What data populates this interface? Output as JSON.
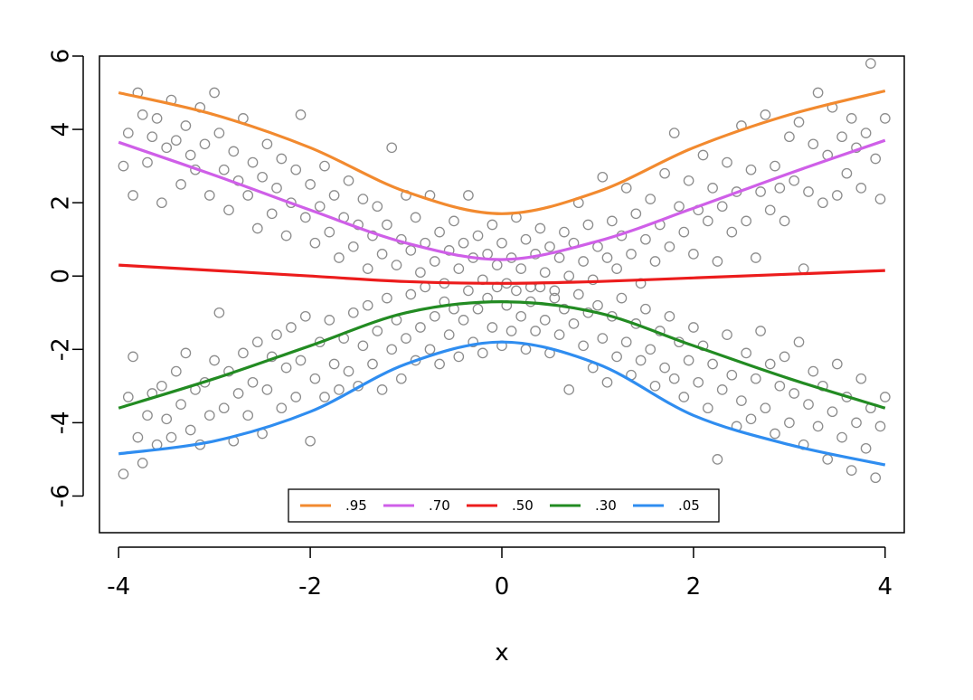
{
  "chart_data": {
    "type": "scatter",
    "title": "",
    "xlabel": "x",
    "ylabel": "",
    "xlim": [
      -4.2,
      4.2
    ],
    "ylim": [
      -7,
      6
    ],
    "x_ticks": [
      "-4",
      "-2",
      "0",
      "2",
      "4"
    ],
    "y_ticks": [
      "-6",
      "-4",
      "-2",
      "0",
      "2",
      "4",
      "6"
    ],
    "grid": false,
    "legend_position": "bottom-center",
    "point_color": "#8c8c8c",
    "quantile_curves": [
      {
        "name": ".95",
        "color": "#f28a2f",
        "x": [
          -4,
          -3,
          -2,
          -1,
          0,
          1,
          2,
          3,
          4
        ],
        "y": [
          5.0,
          4.4,
          3.5,
          2.3,
          1.7,
          2.3,
          3.5,
          4.4,
          5.05
        ]
      },
      {
        "name": ".70",
        "color": "#cf5fe8",
        "x": [
          -4,
          -3,
          -2,
          -1,
          0,
          1,
          2,
          3,
          4
        ],
        "y": [
          3.65,
          2.75,
          1.8,
          0.9,
          0.45,
          0.95,
          1.85,
          2.8,
          3.7
        ]
      },
      {
        "name": ".50",
        "color": "#ec1c1c",
        "x": [
          -4,
          -3,
          -2,
          -1,
          0,
          1,
          2,
          3,
          4
        ],
        "y": [
          0.3,
          0.15,
          0.0,
          -0.15,
          -0.2,
          -0.15,
          -0.05,
          0.05,
          0.15
        ]
      },
      {
        "name": ".30",
        "color": "#228b22",
        "x": [
          -4,
          -3,
          -2,
          -1,
          0,
          1,
          2,
          3,
          4
        ],
        "y": [
          -3.6,
          -2.8,
          -1.9,
          -1.0,
          -0.7,
          -1.0,
          -1.9,
          -2.8,
          -3.6
        ]
      },
      {
        "name": ".05",
        "color": "#2f8df0",
        "x": [
          -4,
          -3,
          -2,
          -1,
          0,
          1,
          2,
          3,
          4
        ],
        "y": [
          -4.85,
          -4.5,
          -3.7,
          -2.4,
          -1.8,
          -2.4,
          -3.8,
          -4.6,
          -5.15
        ]
      }
    ],
    "points": [
      [
        -3.95,
        3.0
      ],
      [
        -3.9,
        3.9
      ],
      [
        -3.85,
        2.2
      ],
      [
        -3.8,
        5.0
      ],
      [
        -3.75,
        4.4
      ],
      [
        -3.7,
        3.1
      ],
      [
        -3.65,
        3.8
      ],
      [
        -3.6,
        4.3
      ],
      [
        -3.55,
        2.0
      ],
      [
        -3.5,
        3.5
      ],
      [
        -3.45,
        4.8
      ],
      [
        -3.4,
        3.7
      ],
      [
        -3.35,
        2.5
      ],
      [
        -3.3,
        4.1
      ],
      [
        -3.25,
        3.3
      ],
      [
        -3.2,
        2.9
      ],
      [
        -3.15,
        4.6
      ],
      [
        -3.1,
        3.6
      ],
      [
        -3.05,
        2.2
      ],
      [
        -3.0,
        5.0
      ],
      [
        -2.95,
        3.9
      ],
      [
        -2.9,
        2.9
      ],
      [
        -2.85,
        1.8
      ],
      [
        -2.8,
        3.4
      ],
      [
        -2.75,
        2.6
      ],
      [
        -2.7,
        4.3
      ],
      [
        -2.65,
        2.2
      ],
      [
        -2.6,
        3.1
      ],
      [
        -2.55,
        1.3
      ],
      [
        -2.5,
        2.7
      ],
      [
        -2.45,
        3.6
      ],
      [
        -2.4,
        1.7
      ],
      [
        -2.35,
        2.4
      ],
      [
        -2.3,
        3.2
      ],
      [
        -2.25,
        1.1
      ],
      [
        -2.2,
        2.0
      ],
      [
        -2.15,
        2.9
      ],
      [
        -2.1,
        4.4
      ],
      [
        -2.05,
        1.6
      ],
      [
        -2.0,
        2.5
      ],
      [
        -1.95,
        0.9
      ],
      [
        -1.9,
        1.9
      ],
      [
        -1.85,
        3.0
      ],
      [
        -1.8,
        1.2
      ],
      [
        -1.75,
        2.2
      ],
      [
        -1.7,
        0.5
      ],
      [
        -1.65,
        1.6
      ],
      [
        -1.6,
        2.6
      ],
      [
        -1.55,
        0.8
      ],
      [
        -1.5,
        1.4
      ],
      [
        -1.45,
        2.1
      ],
      [
        -1.4,
        0.2
      ],
      [
        -1.35,
        1.1
      ],
      [
        -1.3,
        1.9
      ],
      [
        -1.25,
        0.6
      ],
      [
        -1.2,
        1.4
      ],
      [
        -1.15,
        3.5
      ],
      [
        -1.1,
        0.3
      ],
      [
        -1.05,
        1.0
      ],
      [
        -1.0,
        2.2
      ],
      [
        -0.95,
        0.7
      ],
      [
        -0.9,
        1.6
      ],
      [
        -0.85,
        0.1
      ],
      [
        -0.8,
        0.9
      ],
      [
        -0.75,
        2.2
      ],
      [
        -0.7,
        0.4
      ],
      [
        -0.65,
        1.2
      ],
      [
        -0.6,
        -0.2
      ],
      [
        -0.55,
        0.7
      ],
      [
        -0.5,
        1.5
      ],
      [
        -0.45,
        0.2
      ],
      [
        -0.4,
        0.9
      ],
      [
        -0.35,
        2.2
      ],
      [
        -0.3,
        0.5
      ],
      [
        -0.25,
        1.1
      ],
      [
        -0.2,
        -0.1
      ],
      [
        -0.15,
        0.6
      ],
      [
        -0.1,
        1.4
      ],
      [
        -0.05,
        0.3
      ],
      [
        0.0,
        0.9
      ],
      [
        0.05,
        -0.2
      ],
      [
        0.1,
        0.5
      ],
      [
        0.15,
        1.6
      ],
      [
        0.2,
        0.2
      ],
      [
        0.25,
        1.0
      ],
      [
        0.3,
        -0.3
      ],
      [
        0.35,
        0.6
      ],
      [
        0.4,
        1.3
      ],
      [
        0.45,
        0.1
      ],
      [
        0.5,
        0.8
      ],
      [
        0.55,
        -0.4
      ],
      [
        0.6,
        0.5
      ],
      [
        0.65,
        1.2
      ],
      [
        0.7,
        0.0
      ],
      [
        0.75,
        0.9
      ],
      [
        0.8,
        2.0
      ],
      [
        0.85,
        0.4
      ],
      [
        0.9,
        1.4
      ],
      [
        0.95,
        -0.1
      ],
      [
        1.0,
        0.8
      ],
      [
        1.05,
        2.7
      ],
      [
        1.1,
        0.5
      ],
      [
        1.15,
        1.5
      ],
      [
        1.2,
        0.2
      ],
      [
        1.25,
        1.1
      ],
      [
        1.3,
        2.4
      ],
      [
        1.35,
        0.6
      ],
      [
        1.4,
        1.7
      ],
      [
        1.45,
        -0.2
      ],
      [
        1.5,
        1.0
      ],
      [
        1.55,
        2.1
      ],
      [
        1.6,
        0.4
      ],
      [
        1.65,
        1.4
      ],
      [
        1.7,
        2.8
      ],
      [
        1.75,
        0.8
      ],
      [
        1.8,
        3.9
      ],
      [
        1.85,
        1.9
      ],
      [
        1.9,
        1.2
      ],
      [
        1.95,
        2.6
      ],
      [
        2.0,
        0.6
      ],
      [
        2.05,
        1.8
      ],
      [
        2.1,
        3.3
      ],
      [
        2.15,
        1.5
      ],
      [
        2.2,
        2.4
      ],
      [
        2.25,
        0.4
      ],
      [
        2.3,
        1.9
      ],
      [
        2.35,
        3.1
      ],
      [
        2.4,
        1.2
      ],
      [
        2.45,
        2.3
      ],
      [
        2.5,
        4.1
      ],
      [
        2.55,
        1.5
      ],
      [
        2.6,
        2.9
      ],
      [
        2.65,
        0.5
      ],
      [
        2.7,
        2.3
      ],
      [
        2.75,
        4.4
      ],
      [
        2.8,
        1.8
      ],
      [
        2.85,
        3.0
      ],
      [
        2.9,
        2.4
      ],
      [
        2.95,
        1.5
      ],
      [
        3.0,
        3.8
      ],
      [
        3.05,
        2.6
      ],
      [
        3.1,
        4.2
      ],
      [
        3.15,
        0.2
      ],
      [
        3.2,
        2.3
      ],
      [
        3.25,
        3.6
      ],
      [
        3.3,
        5.0
      ],
      [
        3.35,
        2.0
      ],
      [
        3.4,
        3.3
      ],
      [
        3.45,
        4.6
      ],
      [
        3.5,
        2.2
      ],
      [
        3.55,
        3.8
      ],
      [
        3.6,
        2.8
      ],
      [
        3.65,
        4.3
      ],
      [
        3.7,
        3.5
      ],
      [
        3.75,
        2.4
      ],
      [
        3.8,
        3.9
      ],
      [
        3.85,
        5.8
      ],
      [
        3.9,
        3.2
      ],
      [
        3.95,
        2.1
      ],
      [
        4.0,
        4.3
      ],
      [
        -3.95,
        -5.4
      ],
      [
        -3.9,
        -3.3
      ],
      [
        -3.85,
        -2.2
      ],
      [
        -3.8,
        -4.4
      ],
      [
        -3.75,
        -5.1
      ],
      [
        -3.7,
        -3.8
      ],
      [
        -3.65,
        -3.2
      ],
      [
        -3.6,
        -4.6
      ],
      [
        -3.55,
        -3.0
      ],
      [
        -3.5,
        -3.9
      ],
      [
        -3.45,
        -4.4
      ],
      [
        -3.4,
        -2.6
      ],
      [
        -3.35,
        -3.5
      ],
      [
        -3.3,
        -2.1
      ],
      [
        -3.25,
        -4.2
      ],
      [
        -3.2,
        -3.1
      ],
      [
        -3.15,
        -4.6
      ],
      [
        -3.1,
        -2.9
      ],
      [
        -3.05,
        -3.8
      ],
      [
        -3.0,
        -2.3
      ],
      [
        -2.95,
        -1.0
      ],
      [
        -2.9,
        -3.6
      ],
      [
        -2.85,
        -2.6
      ],
      [
        -2.8,
        -4.5
      ],
      [
        -2.75,
        -3.2
      ],
      [
        -2.7,
        -2.1
      ],
      [
        -2.65,
        -3.8
      ],
      [
        -2.6,
        -2.9
      ],
      [
        -2.55,
        -1.8
      ],
      [
        -2.5,
        -4.3
      ],
      [
        -2.45,
        -3.1
      ],
      [
        -2.4,
        -2.2
      ],
      [
        -2.35,
        -1.6
      ],
      [
        -2.3,
        -3.6
      ],
      [
        -2.25,
        -2.5
      ],
      [
        -2.2,
        -1.4
      ],
      [
        -2.15,
        -3.3
      ],
      [
        -2.1,
        -2.3
      ],
      [
        -2.05,
        -1.1
      ],
      [
        -2.0,
        -4.5
      ],
      [
        -1.95,
        -2.8
      ],
      [
        -1.9,
        -1.8
      ],
      [
        -1.85,
        -3.3
      ],
      [
        -1.8,
        -1.2
      ],
      [
        -1.75,
        -2.4
      ],
      [
        -1.7,
        -3.1
      ],
      [
        -1.65,
        -1.7
      ],
      [
        -1.6,
        -2.6
      ],
      [
        -1.55,
        -1.0
      ],
      [
        -1.5,
        -3.0
      ],
      [
        -1.45,
        -1.9
      ],
      [
        -1.4,
        -0.8
      ],
      [
        -1.35,
        -2.4
      ],
      [
        -1.3,
        -1.5
      ],
      [
        -1.25,
        -3.1
      ],
      [
        -1.2,
        -0.6
      ],
      [
        -1.15,
        -2.0
      ],
      [
        -1.1,
        -1.2
      ],
      [
        -1.05,
        -2.8
      ],
      [
        -1.0,
        -1.7
      ],
      [
        -0.95,
        -0.5
      ],
      [
        -0.9,
        -2.3
      ],
      [
        -0.85,
        -1.4
      ],
      [
        -0.8,
        -0.3
      ],
      [
        -0.75,
        -2.0
      ],
      [
        -0.7,
        -1.1
      ],
      [
        -0.65,
        -2.4
      ],
      [
        -0.6,
        -0.7
      ],
      [
        -0.55,
        -1.6
      ],
      [
        -0.5,
        -0.9
      ],
      [
        -0.45,
        -2.2
      ],
      [
        -0.4,
        -1.2
      ],
      [
        -0.35,
        -0.4
      ],
      [
        -0.3,
        -1.8
      ],
      [
        -0.25,
        -0.9
      ],
      [
        -0.2,
        -2.1
      ],
      [
        -0.15,
        -0.6
      ],
      [
        -0.1,
        -1.4
      ],
      [
        -0.05,
        -0.3
      ],
      [
        0.0,
        -1.9
      ],
      [
        0.05,
        -0.8
      ],
      [
        0.1,
        -1.5
      ],
      [
        0.15,
        -0.4
      ],
      [
        0.2,
        -1.1
      ],
      [
        0.25,
        -2.0
      ],
      [
        0.3,
        -0.7
      ],
      [
        0.35,
        -1.5
      ],
      [
        0.4,
        -0.3
      ],
      [
        0.45,
        -1.2
      ],
      [
        0.5,
        -2.1
      ],
      [
        0.55,
        -0.6
      ],
      [
        0.6,
        -1.6
      ],
      [
        0.65,
        -0.9
      ],
      [
        0.7,
        -3.1
      ],
      [
        0.75,
        -1.3
      ],
      [
        0.8,
        -0.5
      ],
      [
        0.85,
        -1.9
      ],
      [
        0.9,
        -1.0
      ],
      [
        0.95,
        -2.5
      ],
      [
        1.0,
        -0.8
      ],
      [
        1.05,
        -1.7
      ],
      [
        1.1,
        -2.9
      ],
      [
        1.15,
        -1.1
      ],
      [
        1.2,
        -2.2
      ],
      [
        1.25,
        -0.6
      ],
      [
        1.3,
        -1.8
      ],
      [
        1.35,
        -2.7
      ],
      [
        1.4,
        -1.3
      ],
      [
        1.45,
        -2.3
      ],
      [
        1.5,
        -0.9
      ],
      [
        1.55,
        -2.0
      ],
      [
        1.6,
        -3.0
      ],
      [
        1.65,
        -1.5
      ],
      [
        1.7,
        -2.5
      ],
      [
        1.75,
        -1.1
      ],
      [
        1.8,
        -2.8
      ],
      [
        1.85,
        -1.8
      ],
      [
        1.9,
        -3.3
      ],
      [
        1.95,
        -2.3
      ],
      [
        2.0,
        -1.4
      ],
      [
        2.05,
        -2.9
      ],
      [
        2.1,
        -1.9
      ],
      [
        2.15,
        -3.6
      ],
      [
        2.2,
        -2.4
      ],
      [
        2.25,
        -5.0
      ],
      [
        2.3,
        -3.1
      ],
      [
        2.35,
        -1.6
      ],
      [
        2.4,
        -2.7
      ],
      [
        2.45,
        -4.1
      ],
      [
        2.5,
        -3.4
      ],
      [
        2.55,
        -2.1
      ],
      [
        2.6,
        -3.9
      ],
      [
        2.65,
        -2.8
      ],
      [
        2.7,
        -1.5
      ],
      [
        2.75,
        -3.6
      ],
      [
        2.8,
        -2.4
      ],
      [
        2.85,
        -4.3
      ],
      [
        2.9,
        -3.0
      ],
      [
        2.95,
        -2.2
      ],
      [
        3.0,
        -4.0
      ],
      [
        3.05,
        -3.2
      ],
      [
        3.1,
        -1.8
      ],
      [
        3.15,
        -4.6
      ],
      [
        3.2,
        -3.5
      ],
      [
        3.25,
        -2.6
      ],
      [
        3.3,
        -4.1
      ],
      [
        3.35,
        -3.0
      ],
      [
        3.4,
        -5.0
      ],
      [
        3.45,
        -3.7
      ],
      [
        3.5,
        -2.4
      ],
      [
        3.55,
        -4.4
      ],
      [
        3.6,
        -3.3
      ],
      [
        3.65,
        -5.3
      ],
      [
        3.7,
        -4.0
      ],
      [
        3.75,
        -2.8
      ],
      [
        3.8,
        -4.7
      ],
      [
        3.85,
        -3.6
      ],
      [
        3.9,
        -5.5
      ],
      [
        3.95,
        -4.1
      ],
      [
        4.0,
        -3.3
      ]
    ]
  }
}
